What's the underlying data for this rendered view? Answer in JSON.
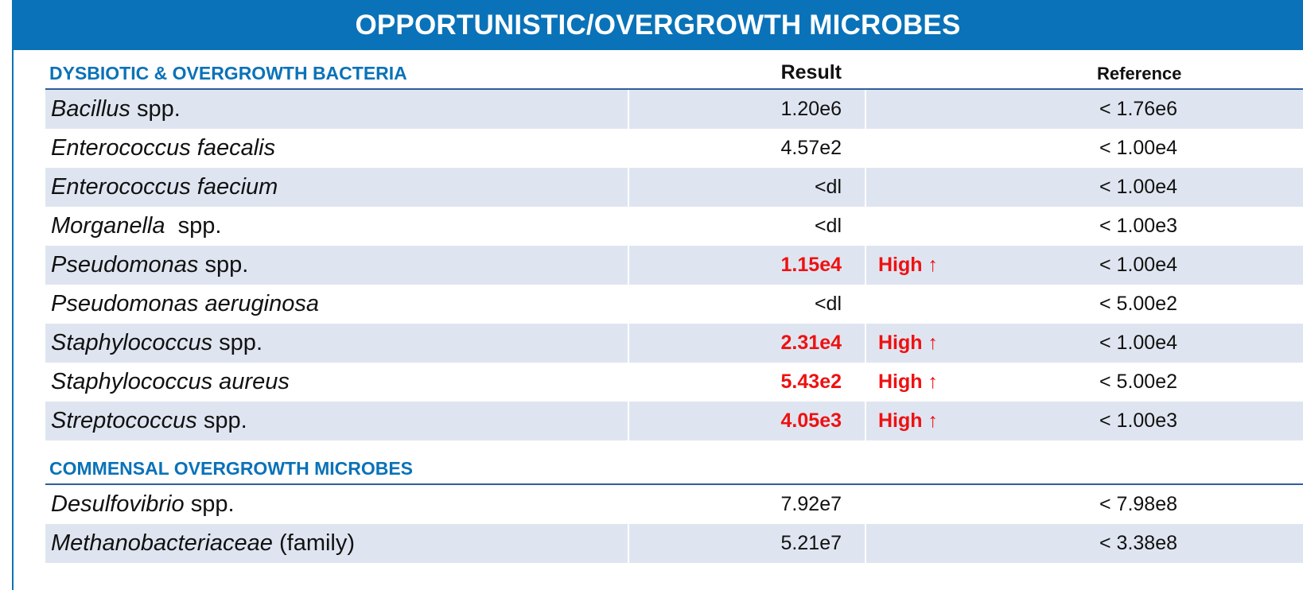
{
  "panel_title": "OPPORTUNISTIC/OVERGROWTH MICROBES",
  "columns": {
    "result": "Result",
    "reference": "Reference"
  },
  "sections": [
    {
      "title": "DYSBIOTIC & OVERGROWTH BACTERIA",
      "rows": [
        {
          "name_italic": "Bacillus",
          "name_plain": " spp.",
          "result": "1.20e6",
          "flag": "",
          "reference": "< 1.76e6"
        },
        {
          "name_italic": "Enterococcus faecalis",
          "name_plain": "",
          "result": "4.57e2",
          "flag": "",
          "reference": "< 1.00e4"
        },
        {
          "name_italic": "Enterococcus faecium",
          "name_plain": "",
          "result": "<dl",
          "flag": "",
          "reference": "< 1.00e4"
        },
        {
          "name_italic": "Morganella",
          "name_plain": "  spp.",
          "result": "<dl",
          "flag": "",
          "reference": "< 1.00e3"
        },
        {
          "name_italic": "Pseudomonas",
          "name_plain": " spp.",
          "result": "1.15e4",
          "flag": "High ↑",
          "reference": "< 1.00e4"
        },
        {
          "name_italic": "Pseudomonas aeruginosa",
          "name_plain": "",
          "result": "<dl",
          "flag": "",
          "reference": "< 5.00e2"
        },
        {
          "name_italic": "Staphylococcus",
          "name_plain": " spp.",
          "result": "2.31e4",
          "flag": "High ↑",
          "reference": "< 1.00e4"
        },
        {
          "name_italic": "Staphylococcus aureus",
          "name_plain": "",
          "result": "5.43e2",
          "flag": "High ↑",
          "reference": "< 5.00e2"
        },
        {
          "name_italic": "Streptococcus",
          "name_plain": " spp.",
          "result": "4.05e3",
          "flag": "High ↑",
          "reference": "< 1.00e3"
        }
      ]
    },
    {
      "title": "COMMENSAL OVERGROWTH MICROBES",
      "rows": [
        {
          "name_italic": "Desulfovibrio",
          "name_plain": " spp.",
          "result": "7.92e7",
          "flag": "",
          "reference": "< 7.98e8"
        },
        {
          "name_italic": "Methanobacteriaceae",
          "name_plain": " (family)",
          "result": "5.21e7",
          "flag": "",
          "reference": "< 3.38e8"
        }
      ]
    }
  ],
  "colors": {
    "banner": "#0a72b8",
    "section_title": "#0a72b8",
    "row_shade": "#dfe5f0",
    "high_flag": "#ee1111"
  }
}
